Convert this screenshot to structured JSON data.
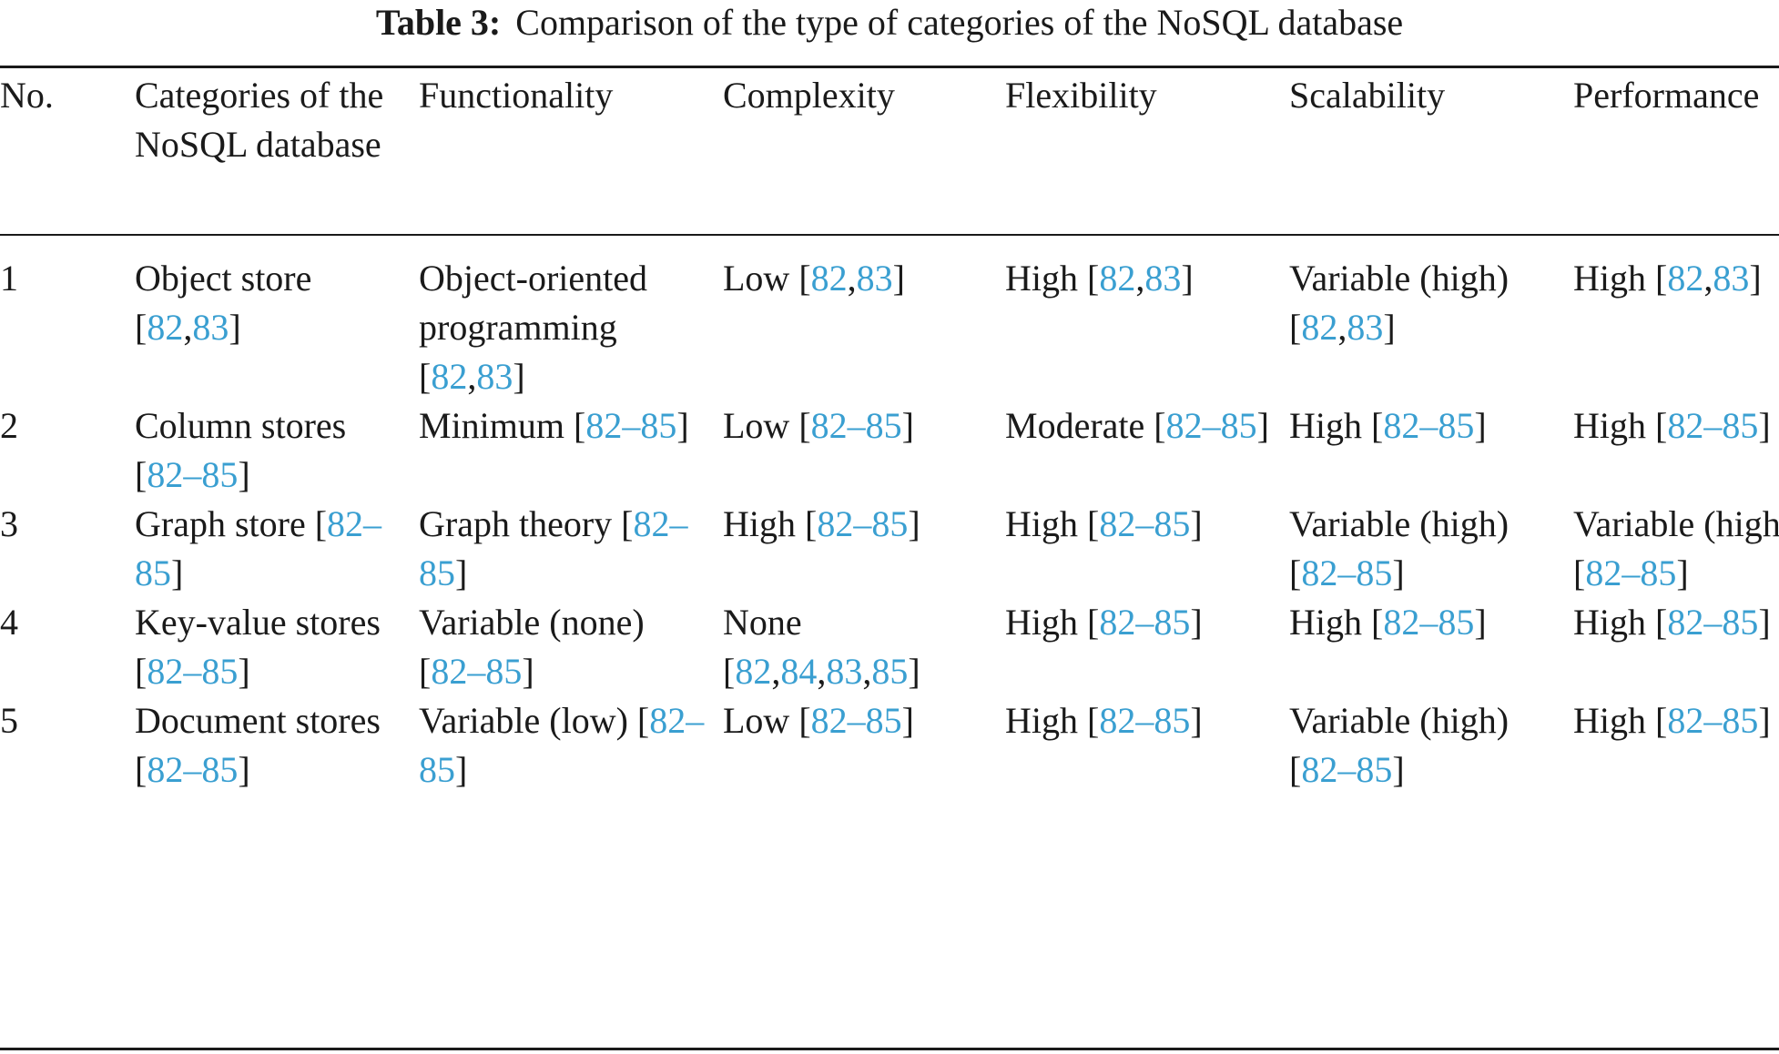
{
  "caption": {
    "label": "Table 3:",
    "text": "Comparison of the type of categories of the NoSQL database"
  },
  "table": {
    "headers": [
      "No.",
      "Categories of the NoSQL database",
      "Functionality",
      "Complexity",
      "Flexibility",
      "Scalability",
      "Performance"
    ],
    "rows": [
      {
        "no": "1",
        "category": {
          "text": "Object store",
          "cite": [
            "82",
            "83"
          ]
        },
        "functionality": {
          "text": "Object-oriented programming",
          "cite": [
            "82",
            "83"
          ]
        },
        "complexity": {
          "text": "Low",
          "cite": [
            "82",
            "83"
          ]
        },
        "flexibility": {
          "text": "High",
          "cite": [
            "82",
            "83"
          ]
        },
        "scalability": {
          "text": "Variable (high)",
          "cite": [
            "82",
            "83"
          ]
        },
        "performance": {
          "text": "High",
          "cite": [
            "82",
            "83"
          ]
        }
      },
      {
        "no": "2",
        "category": {
          "text": "Column stores",
          "cite": [
            "82–85"
          ]
        },
        "functionality": {
          "text": "Minimum",
          "cite": [
            "82–85"
          ]
        },
        "complexity": {
          "text": "Low",
          "cite": [
            "82–85"
          ]
        },
        "flexibility": {
          "text": "Moderate",
          "cite": [
            "82–85"
          ]
        },
        "scalability": {
          "text": "High",
          "cite": [
            "82–85"
          ]
        },
        "performance": {
          "text": "High",
          "cite": [
            "82–85"
          ]
        }
      },
      {
        "no": "3",
        "category": {
          "text": "Graph store",
          "cite": [
            "82–85"
          ]
        },
        "functionality": {
          "text": "Graph theory",
          "cite": [
            "82–85"
          ]
        },
        "complexity": {
          "text": "High",
          "cite": [
            "82–85"
          ]
        },
        "flexibility": {
          "text": "High",
          "cite": [
            "82–85"
          ]
        },
        "scalability": {
          "text": "Variable (high)",
          "cite": [
            "82–85"
          ]
        },
        "performance": {
          "text": "Variable (high)",
          "cite": [
            "82–85"
          ]
        }
      },
      {
        "no": "4",
        "category": {
          "text": "Key-value stores",
          "cite": [
            "82–85"
          ]
        },
        "functionality": {
          "text": "Variable (none)",
          "cite": [
            "82–85"
          ]
        },
        "complexity": {
          "text": "None",
          "cite": [
            "82",
            "84",
            "83",
            "85"
          ]
        },
        "flexibility": {
          "text": "High",
          "cite": [
            "82–85"
          ]
        },
        "scalability": {
          "text": "High",
          "cite": [
            "82–85"
          ]
        },
        "performance": {
          "text": "High",
          "cite": [
            "82–85"
          ]
        }
      },
      {
        "no": "5",
        "category": {
          "text": "Document stores",
          "cite": [
            "82–85"
          ]
        },
        "functionality": {
          "text": "Variable (low)",
          "cite": [
            "82–85"
          ]
        },
        "complexity": {
          "text": "Low",
          "cite": [
            "82–85"
          ]
        },
        "flexibility": {
          "text": "High",
          "cite": [
            "82–85"
          ]
        },
        "scalability": {
          "text": "Variable (high)",
          "cite": [
            "82–85"
          ]
        },
        "performance": {
          "text": "High",
          "cite": [
            "82–85"
          ]
        }
      }
    ]
  },
  "colors": {
    "text": "#1a1a1a",
    "citation_link": "#3a9fd1",
    "background": "#ffffff"
  }
}
